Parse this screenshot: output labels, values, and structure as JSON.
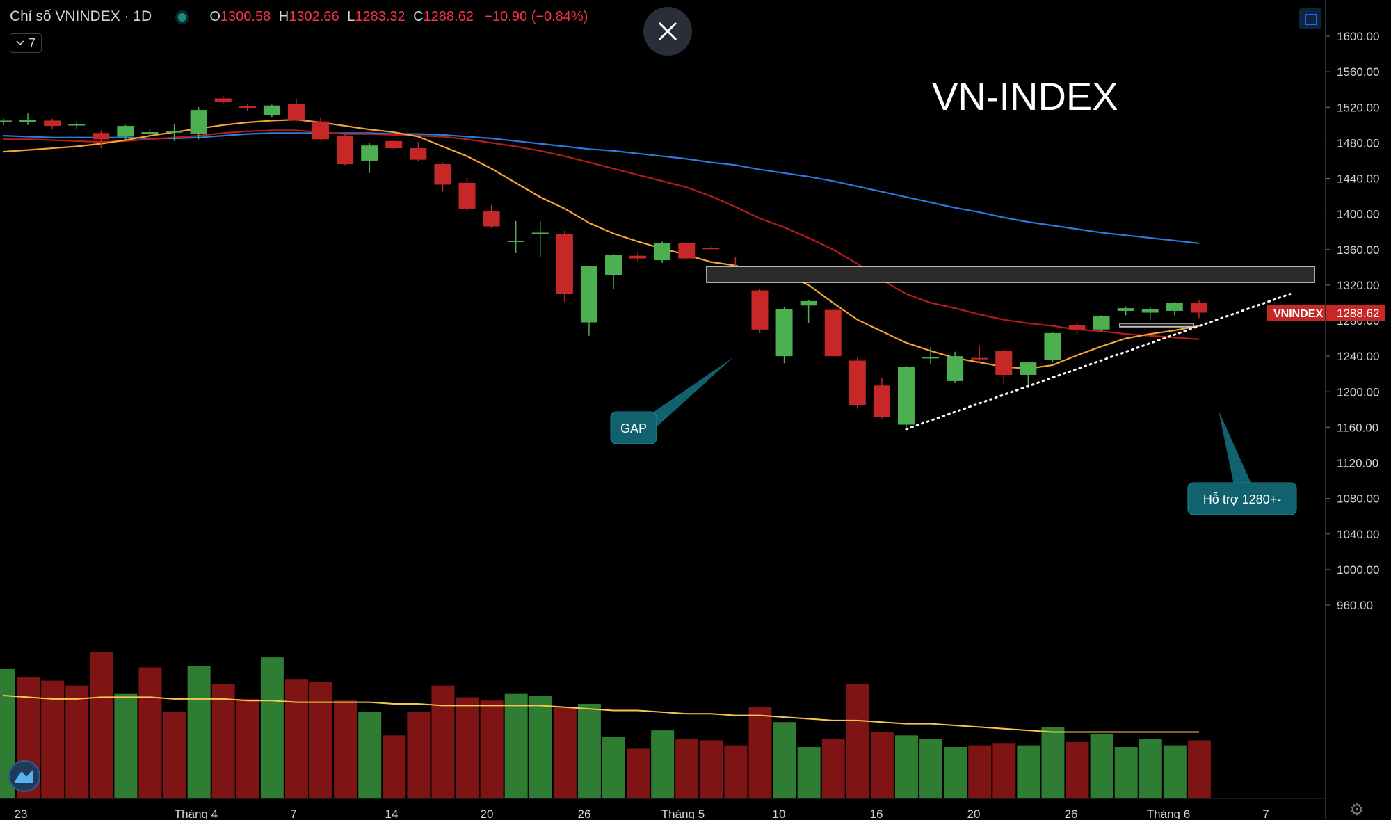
{
  "header": {
    "symbol": "Chỉ số VNINDEX · 1D",
    "open_key": "O",
    "open": "1300.58",
    "high_key": "H",
    "high": "1302.66",
    "low_key": "L",
    "low": "1283.32",
    "close_key": "C",
    "close": "1288.62",
    "change": "−10.90 (−0.84%)",
    "collapse_count": "7"
  },
  "icons": {
    "close": "close-icon",
    "fullscreen": "fullscreen-icon",
    "settings": "gear-icon",
    "logo": "tradingview-logo-icon",
    "collapse": "chevron-down-icon"
  },
  "colors": {
    "up": "#4caf50",
    "down": "#c62828",
    "vol_up": "#2e7d32",
    "vol_down": "#7f1414",
    "ma_orange": "#f7a436",
    "ma_red": "#b71c1c",
    "ma_blue": "#2d7be0",
    "callout": "#11616e",
    "price_label": "#c62828"
  },
  "chart_data": {
    "type": "candlestick",
    "title": "VN-INDEX",
    "price_axis": {
      "ticks": [
        "1600.00",
        "1560.00",
        "1520.00",
        "1480.00",
        "1440.00",
        "1400.00",
        "1360.00",
        "1320.00",
        "1280.00",
        "1240.00",
        "1200.00",
        "1160.00",
        "1120.00",
        "1080.00",
        "1040.00",
        "1000.00",
        "960.00"
      ],
      "range": [
        940,
        1620
      ]
    },
    "time_axis": {
      "labels": [
        "23",
        "Tháng 4",
        "7",
        "14",
        "20",
        "26",
        "Tháng 5",
        "10",
        "16",
        "20",
        "26",
        "Tháng 6",
        "7"
      ]
    },
    "last_price_label": {
      "name": "VNINDEX",
      "value": "1288.62"
    },
    "candles": [
      {
        "o": 1503,
        "h": 1507,
        "l": 1500,
        "c": 1505
      },
      {
        "o": 1503,
        "h": 1513,
        "l": 1500,
        "c": 1506
      },
      {
        "o": 1505,
        "h": 1507,
        "l": 1496,
        "c": 1499
      },
      {
        "o": 1500,
        "h": 1503,
        "l": 1495,
        "c": 1501
      },
      {
        "o": 1491,
        "h": 1494,
        "l": 1474,
        "c": 1484
      },
      {
        "o": 1487,
        "h": 1500,
        "l": 1483,
        "c": 1499
      },
      {
        "o": 1491,
        "h": 1496,
        "l": 1488,
        "c": 1492
      },
      {
        "o": 1492,
        "h": 1501,
        "l": 1482,
        "c": 1493
      },
      {
        "o": 1490,
        "h": 1520,
        "l": 1484,
        "c": 1517
      },
      {
        "o": 1530,
        "h": 1533,
        "l": 1524,
        "c": 1526
      },
      {
        "o": 1521,
        "h": 1524,
        "l": 1516,
        "c": 1520
      },
      {
        "o": 1511,
        "h": 1523,
        "l": 1509,
        "c": 1522
      },
      {
        "o": 1524,
        "h": 1529,
        "l": 1504,
        "c": 1505
      },
      {
        "o": 1504,
        "h": 1508,
        "l": 1483,
        "c": 1484
      },
      {
        "o": 1488,
        "h": 1491,
        "l": 1455,
        "c": 1456
      },
      {
        "o": 1460,
        "h": 1480,
        "l": 1446,
        "c": 1477
      },
      {
        "o": 1482,
        "h": 1484,
        "l": 1472,
        "c": 1474
      },
      {
        "o": 1474,
        "h": 1481,
        "l": 1459,
        "c": 1461
      },
      {
        "o": 1456,
        "h": 1458,
        "l": 1425,
        "c": 1433
      },
      {
        "o": 1435,
        "h": 1441,
        "l": 1403,
        "c": 1406
      },
      {
        "o": 1403,
        "h": 1410,
        "l": 1384,
        "c": 1386
      },
      {
        "o": 1370,
        "h": 1392,
        "l": 1356,
        "c": 1370
      },
      {
        "o": 1378,
        "h": 1392,
        "l": 1352,
        "c": 1379
      },
      {
        "o": 1377,
        "h": 1381,
        "l": 1301,
        "c": 1310
      },
      {
        "o": 1278,
        "h": 1341,
        "l": 1263,
        "c": 1341
      },
      {
        "o": 1331,
        "h": 1355,
        "l": 1316,
        "c": 1354
      },
      {
        "o": 1353,
        "h": 1357,
        "l": 1346,
        "c": 1350
      },
      {
        "o": 1348,
        "h": 1369,
        "l": 1345,
        "c": 1367
      },
      {
        "o": 1367,
        "h": 1368,
        "l": 1349,
        "c": 1350
      },
      {
        "o": 1362,
        "h": 1364,
        "l": 1359,
        "c": 1361
      },
      {
        "o": 1336,
        "h": 1352,
        "l": 1327,
        "c": 1331
      },
      {
        "o": 1314,
        "h": 1316,
        "l": 1266,
        "c": 1270
      },
      {
        "o": 1240,
        "h": 1295,
        "l": 1232,
        "c": 1293
      },
      {
        "o": 1297,
        "h": 1303,
        "l": 1277,
        "c": 1302
      },
      {
        "o": 1292,
        "h": 1294,
        "l": 1239,
        "c": 1240
      },
      {
        "o": 1235,
        "h": 1238,
        "l": 1181,
        "c": 1185
      },
      {
        "o": 1207,
        "h": 1215,
        "l": 1170,
        "c": 1172
      },
      {
        "o": 1163,
        "h": 1229,
        "l": 1160,
        "c": 1228
      },
      {
        "o": 1238,
        "h": 1250,
        "l": 1231,
        "c": 1239
      },
      {
        "o": 1212,
        "h": 1245,
        "l": 1210,
        "c": 1240
      },
      {
        "o": 1238,
        "h": 1252,
        "l": 1232,
        "c": 1237
      },
      {
        "o": 1246,
        "h": 1248,
        "l": 1209,
        "c": 1219
      },
      {
        "o": 1219,
        "h": 1233,
        "l": 1204,
        "c": 1233
      },
      {
        "o": 1236,
        "h": 1267,
        "l": 1233,
        "c": 1266
      },
      {
        "o": 1275,
        "h": 1279,
        "l": 1264,
        "c": 1270
      },
      {
        "o": 1270,
        "h": 1286,
        "l": 1268,
        "c": 1285
      },
      {
        "o": 1291,
        "h": 1296,
        "l": 1286,
        "c": 1294
      },
      {
        "o": 1289,
        "h": 1296,
        "l": 1281,
        "c": 1293
      },
      {
        "o": 1291,
        "h": 1301,
        "l": 1286,
        "c": 1300
      },
      {
        "o": 1300,
        "h": 1303,
        "l": 1283,
        "c": 1289
      }
    ],
    "ma_fast": [
      1470,
      1472,
      1474,
      1476,
      1479,
      1483,
      1488,
      1492,
      1496,
      1500,
      1503,
      1505,
      1506,
      1503,
      1499,
      1495,
      1492,
      1487,
      1476,
      1465,
      1451,
      1435,
      1419,
      1406,
      1390,
      1378,
      1369,
      1361,
      1354,
      1346,
      1342,
      1334,
      1333,
      1320,
      1300,
      1281,
      1268,
      1255,
      1246,
      1238,
      1233,
      1228,
      1226,
      1230,
      1241,
      1251,
      1260,
      1265,
      1269,
      1274
    ],
    "ma_mid": [
      1484,
      1484,
      1483,
      1482,
      1481,
      1482,
      1484,
      1486,
      1488,
      1491,
      1493,
      1494,
      1494,
      1492,
      1490,
      1490,
      1489,
      1488,
      1487,
      1484,
      1480,
      1476,
      1471,
      1465,
      1458,
      1451,
      1444,
      1437,
      1430,
      1420,
      1408,
      1395,
      1385,
      1373,
      1360,
      1344,
      1326,
      1310,
      1300,
      1294,
      1287,
      1281,
      1277,
      1274,
      1270,
      1268,
      1265,
      1263,
      1261,
      1259
    ],
    "ma_slow": [
      1488,
      1487,
      1486,
      1486,
      1486,
      1486,
      1485,
      1485,
      1486,
      1488,
      1490,
      1491,
      1491,
      1491,
      1491,
      1491,
      1490,
      1490,
      1489,
      1487,
      1485,
      1482,
      1479,
      1476,
      1473,
      1471,
      1468,
      1465,
      1462,
      1458,
      1455,
      1450,
      1446,
      1442,
      1437,
      1431,
      1425,
      1419,
      1413,
      1407,
      1402,
      1396,
      1391,
      1387,
      1383,
      1379,
      1376,
      1373,
      1370,
      1367
    ],
    "volume": [
      {
        "v": 0.78,
        "up": true
      },
      {
        "v": 0.73,
        "up": false
      },
      {
        "v": 0.71,
        "up": false
      },
      {
        "v": 0.68,
        "up": false
      },
      {
        "v": 0.88,
        "up": false
      },
      {
        "v": 0.63,
        "up": true
      },
      {
        "v": 0.79,
        "up": false
      },
      {
        "v": 0.52,
        "up": false
      },
      {
        "v": 0.8,
        "up": true
      },
      {
        "v": 0.69,
        "up": false
      },
      {
        "v": 0.6,
        "up": false
      },
      {
        "v": 0.85,
        "up": true
      },
      {
        "v": 0.72,
        "up": false
      },
      {
        "v": 0.7,
        "up": false
      },
      {
        "v": 0.59,
        "up": false
      },
      {
        "v": 0.52,
        "up": true
      },
      {
        "v": 0.38,
        "up": false
      },
      {
        "v": 0.52,
        "up": false
      },
      {
        "v": 0.68,
        "up": false
      },
      {
        "v": 0.61,
        "up": false
      },
      {
        "v": 0.59,
        "up": false
      },
      {
        "v": 0.63,
        "up": true
      },
      {
        "v": 0.62,
        "up": true
      },
      {
        "v": 0.55,
        "up": false
      },
      {
        "v": 0.57,
        "up": true
      },
      {
        "v": 0.37,
        "up": true
      },
      {
        "v": 0.3,
        "up": false
      },
      {
        "v": 0.41,
        "up": true
      },
      {
        "v": 0.36,
        "up": false
      },
      {
        "v": 0.35,
        "up": false
      },
      {
        "v": 0.32,
        "up": false
      },
      {
        "v": 0.55,
        "up": false
      },
      {
        "v": 0.46,
        "up": true
      },
      {
        "v": 0.31,
        "up": true
      },
      {
        "v": 0.36,
        "up": false
      },
      {
        "v": 0.69,
        "up": false
      },
      {
        "v": 0.4,
        "up": false
      },
      {
        "v": 0.38,
        "up": true
      },
      {
        "v": 0.36,
        "up": true
      },
      {
        "v": 0.31,
        "up": true
      },
      {
        "v": 0.32,
        "up": false
      },
      {
        "v": 0.33,
        "up": false
      },
      {
        "v": 0.32,
        "up": true
      },
      {
        "v": 0.43,
        "up": true
      },
      {
        "v": 0.34,
        "up": false
      },
      {
        "v": 0.39,
        "up": true
      },
      {
        "v": 0.31,
        "up": true
      },
      {
        "v": 0.36,
        "up": true
      },
      {
        "v": 0.32,
        "up": true
      },
      {
        "v": 0.35,
        "up": false
      }
    ],
    "volume_ma": [
      0.62,
      0.61,
      0.6,
      0.6,
      0.61,
      0.61,
      0.61,
      0.6,
      0.6,
      0.6,
      0.59,
      0.59,
      0.58,
      0.58,
      0.58,
      0.58,
      0.57,
      0.57,
      0.56,
      0.56,
      0.56,
      0.56,
      0.56,
      0.55,
      0.54,
      0.53,
      0.53,
      0.52,
      0.51,
      0.51,
      0.5,
      0.5,
      0.49,
      0.48,
      0.47,
      0.47,
      0.46,
      0.45,
      0.45,
      0.44,
      0.43,
      0.42,
      0.41,
      0.4,
      0.4,
      0.4,
      0.4,
      0.4,
      0.4,
      0.4
    ],
    "annotations": {
      "gap_label": "GAP",
      "gap_zone": {
        "y1": 1323,
        "y2": 1341
      },
      "support_label": "Hỗ trợ 1280+-",
      "support_box": {
        "y1": 1273,
        "y2": 1277
      },
      "trendline": {
        "from": 1158,
        "to": 1310
      }
    }
  }
}
